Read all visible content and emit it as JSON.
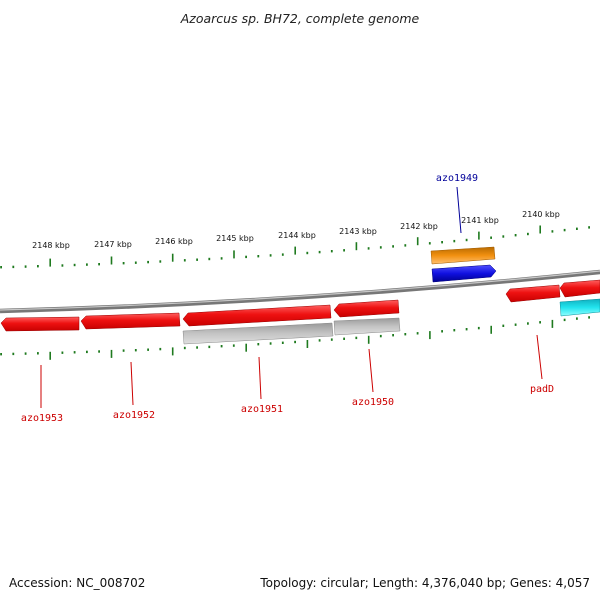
{
  "title": "Azoarcus sp. BH72, complete genome",
  "colors": {
    "backbone": "#8a8a8a",
    "tick": "#1f7a1f",
    "gene_red": "#ee1111",
    "gene_grey": "#b8b8b8",
    "gene_orange": "#f29010",
    "gene_blue": "#1010e0",
    "gene_cyan": "#22e4ee",
    "label_red": "#cc0000",
    "label_blue": "#000099"
  },
  "tick_labels": [
    "2148 kbp",
    "2147 kbp",
    "2146 kbp",
    "2145 kbp",
    "2144 kbp",
    "2143 kbp",
    "2142 kbp",
    "2141 kbp",
    "2140 kbp"
  ],
  "gene_labels": [
    {
      "name": "azo1949",
      "color": "blue"
    },
    {
      "name": "azo1953",
      "color": "red"
    },
    {
      "name": "azo1952",
      "color": "red"
    },
    {
      "name": "azo1951",
      "color": "red"
    },
    {
      "name": "azo1950",
      "color": "red"
    },
    {
      "name": "padD",
      "color": "red"
    }
  ],
  "footer": {
    "accession": "Accession: NC_008702",
    "topology": "Topology: circular; Length: 4,376,040 bp; Genes: 4,057"
  }
}
